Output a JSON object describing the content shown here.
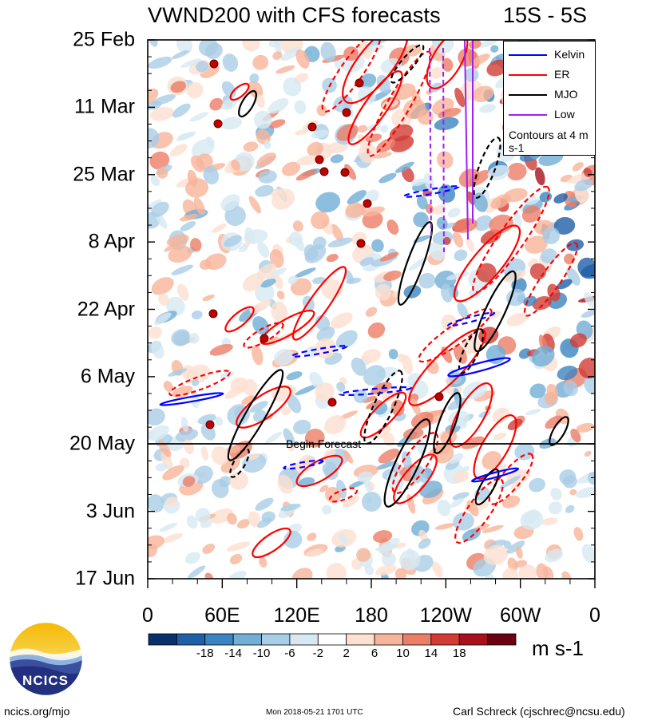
{
  "header": {
    "title": "VWND200 with CFS forecasts",
    "region": "15S - 5S"
  },
  "chart_data": {
    "type": "heatmap",
    "title": "VWND200 with CFS forecasts",
    "subtitle": "15S - 5S",
    "x_tick_labels": [
      "0",
      "60E",
      "120E",
      "180",
      "120W",
      "60W",
      "0"
    ],
    "y_tick_labels": [
      "25 Feb",
      "11 Mar",
      "25 Mar",
      "8 Apr",
      "22 Apr",
      "6 May",
      "20 May",
      "3 Jun",
      "17 Jun"
    ],
    "colorbar": {
      "labels": [
        "-18",
        "-14",
        "-10",
        "-6",
        "-2",
        "2",
        "6",
        "10",
        "14",
        "18"
      ],
      "colors": [
        "#08306b",
        "#1f5fa8",
        "#3b84c2",
        "#72aed6",
        "#a9cde6",
        "#d7e8f3",
        "#ffffff",
        "#fde0d0",
        "#f7b49a",
        "#ec7d67",
        "#d23c35",
        "#a8101e",
        "#6b0010"
      ],
      "units": "m s-1"
    },
    "legend": [
      {
        "name": "Kelvin",
        "color": "#0000ff"
      },
      {
        "name": "ER",
        "color": "#ff0000"
      },
      {
        "name": "MJO",
        "color": "#000000"
      },
      {
        "name": "Low",
        "color": "#a020f0"
      }
    ],
    "legend_note": "Contours at 4 m s-1",
    "forecast_label": "Begin Forecast",
    "forecast_start": "20 May"
  },
  "footer": {
    "logo_text": "NCICS",
    "site": "ncics.org/mjo",
    "timestamp": "Mon 2018-05-21 1701 UTC",
    "author": "Carl Schreck (cjschrec@ncsu.edu)"
  }
}
